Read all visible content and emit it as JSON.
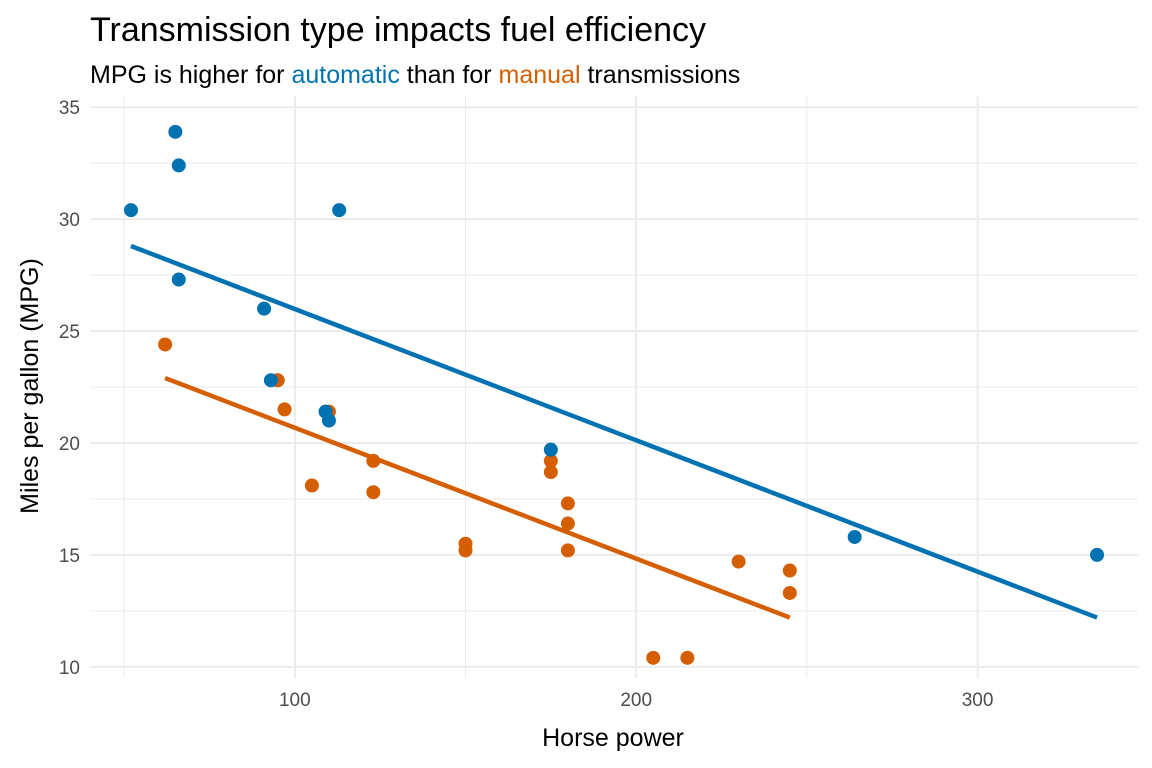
{
  "colors": {
    "automatic": "#0072B2",
    "manual": "#D55E00",
    "grid": "#ebebeb",
    "tick_text": "#4d4d4d"
  },
  "chart_data": {
    "type": "scatter",
    "title": "Transmission type impacts fuel efficiency",
    "subtitle": {
      "prefix": "MPG is higher for ",
      "auto_word": "automatic",
      "middle": " than for ",
      "manual_word": "manual",
      "suffix": " transmissions"
    },
    "xlabel": "Horse power",
    "ylabel": "Miles per gallon (MPG)",
    "xlim": [
      40,
      347
    ],
    "ylim": [
      9.5,
      35.5
    ],
    "x_ticks": [
      100,
      200,
      300
    ],
    "y_ticks": [
      10,
      15,
      20,
      25,
      30,
      35
    ],
    "grid": true,
    "legend": "none",
    "series": [
      {
        "key": "automatic",
        "points": [
          [
            52,
            30.4
          ],
          [
            65,
            33.9
          ],
          [
            66,
            32.4
          ],
          [
            66,
            27.3
          ],
          [
            91,
            26.0
          ],
          [
            93,
            22.8
          ],
          [
            109,
            21.4
          ],
          [
            110,
            21.0
          ],
          [
            113,
            30.4
          ],
          [
            175,
            19.7
          ],
          [
            264,
            15.8
          ],
          [
            335,
            15.0
          ]
        ],
        "fit": [
          [
            52,
            28.8
          ],
          [
            335,
            12.2
          ]
        ]
      },
      {
        "key": "manual",
        "points": [
          [
            62,
            24.4
          ],
          [
            95,
            22.8
          ],
          [
            97,
            21.5
          ],
          [
            105,
            18.1
          ],
          [
            110,
            21.4
          ],
          [
            123,
            19.2
          ],
          [
            123,
            17.8
          ],
          [
            150,
            15.5
          ],
          [
            150,
            15.2
          ],
          [
            175,
            19.2
          ],
          [
            175,
            18.7
          ],
          [
            180,
            17.3
          ],
          [
            180,
            16.4
          ],
          [
            180,
            15.2
          ],
          [
            205,
            10.4
          ],
          [
            215,
            10.4
          ],
          [
            230,
            14.7
          ],
          [
            245,
            14.3
          ],
          [
            245,
            13.3
          ]
        ],
        "fit": [
          [
            62,
            22.9
          ],
          [
            245,
            12.2
          ]
        ]
      }
    ]
  }
}
